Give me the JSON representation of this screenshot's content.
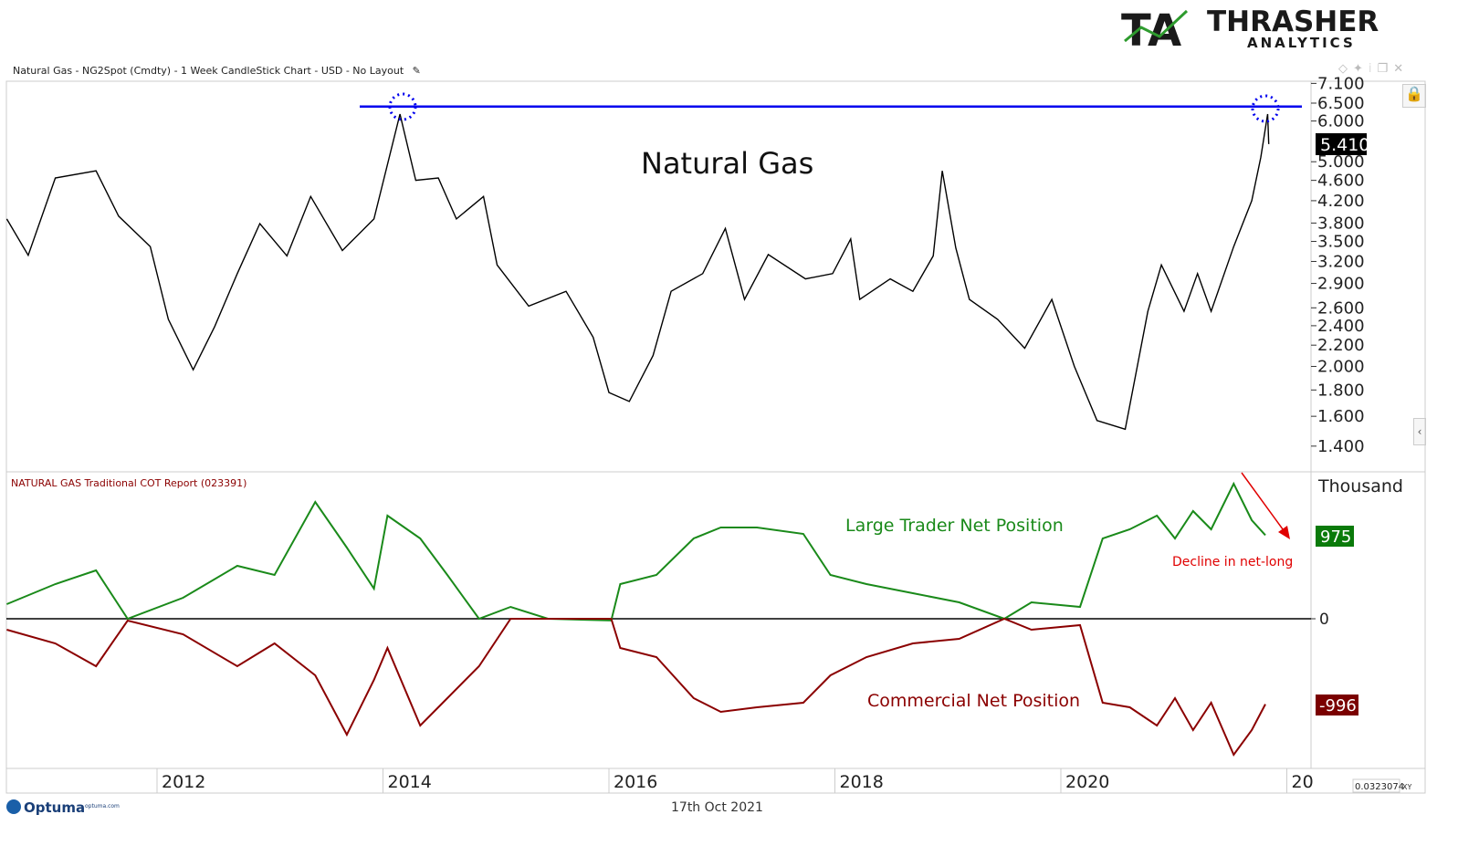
{
  "header": {
    "title": "Natural Gas - NG2Spot (Cmdty) - 1 Week CandleStick Chart - USD - No Layout",
    "edit_icon": "pencil-icon"
  },
  "logo": {
    "brand": "THRASHER",
    "sub": "ANALYTICS",
    "mark": "TA"
  },
  "toolbar_icons": [
    "diamond-icon",
    "pin-icon",
    "info-icon",
    "restore-window-icon",
    "close-icon"
  ],
  "colors": {
    "price": "#000000",
    "resistance": "#0000ee",
    "large_trader": "#1a8a1a",
    "commercial": "#8b0000",
    "annotation": "#e00000"
  },
  "footer": {
    "brand": "Optuma",
    "site": "optuma.com",
    "date": "17th Oct 2021",
    "coord_readout": "0.0323074",
    "xy_label": "XY"
  },
  "chart_data": [
    {
      "type": "candlestick",
      "title": "Natural Gas",
      "yscale": "log",
      "ylim": [
        1.35,
        7.1
      ],
      "yticks": [
        "7.100",
        "6.500",
        "6.000",
        "5.000",
        "4.600",
        "4.200",
        "3.800",
        "3.500",
        "3.200",
        "2.900",
        "2.600",
        "2.400",
        "2.200",
        "2.000",
        "1.800",
        "1.600",
        "1.400"
      ],
      "last_value": "5.410",
      "resistance_level": 6.4,
      "annotations": [
        "circle at 2014 high",
        "circle at 2021 high"
      ],
      "x": [
        2010.67,
        2010.86,
        2011.1,
        2011.46,
        2011.66,
        2011.94,
        2012.1,
        2012.32,
        2012.51,
        2012.71,
        2012.91,
        2013.15,
        2013.36,
        2013.64,
        2013.92,
        2014.15,
        2014.29,
        2014.49,
        2014.65,
        2014.89,
        2015.01,
        2015.29,
        2015.62,
        2015.86,
        2016.0,
        2016.18,
        2016.39,
        2016.55,
        2016.83,
        2017.03,
        2017.2,
        2017.41,
        2017.74,
        2017.98,
        2018.14,
        2018.22,
        2018.49,
        2018.69,
        2018.87,
        2018.95,
        2019.07,
        2019.19,
        2019.44,
        2019.68,
        2019.92,
        2020.12,
        2020.32,
        2020.57,
        2020.77,
        2020.89,
        2021.09,
        2021.21,
        2021.33,
        2021.53,
        2021.69,
        2021.77,
        2021.83,
        2021.84
      ],
      "close": [
        3.87,
        3.29,
        4.65,
        4.8,
        3.92,
        3.42,
        2.47,
        1.97,
        2.39,
        3.03,
        3.79,
        3.28,
        4.28,
        3.36,
        3.87,
        6.19,
        4.6,
        4.65,
        3.87,
        4.28,
        3.15,
        2.62,
        2.8,
        2.28,
        1.78,
        1.71,
        2.1,
        2.8,
        3.03,
        3.71,
        2.7,
        3.3,
        2.96,
        3.03,
        3.54,
        2.7,
        2.96,
        2.8,
        3.28,
        4.8,
        3.4,
        2.7,
        2.47,
        2.17,
        2.7,
        2.0,
        1.57,
        1.51,
        2.56,
        3.15,
        2.56,
        3.03,
        2.56,
        3.42,
        4.2,
        5.1,
        6.19,
        5.41
      ]
    },
    {
      "type": "line",
      "title": "NATURAL GAS Traditional COT Report (023391)",
      "ylabel": "Thousand",
      "zero_label": "0",
      "x": [
        2010.67,
        2011.1,
        2011.46,
        2011.74,
        2012.23,
        2012.71,
        2013.04,
        2013.4,
        2013.68,
        2013.92,
        2014.04,
        2014.33,
        2014.57,
        2014.85,
        2015.13,
        2015.46,
        2016.02,
        2016.1,
        2016.42,
        2016.75,
        2016.99,
        2017.31,
        2017.72,
        2017.96,
        2018.28,
        2018.69,
        2019.1,
        2019.5,
        2019.74,
        2020.17,
        2020.37,
        2020.61,
        2020.85,
        2021.01,
        2021.17,
        2021.33,
        2021.53,
        2021.69,
        2021.81
      ],
      "series": [
        {
          "name": "Large Trader Net Position",
          "last_label": "975",
          "values": [
            170,
            404,
            564,
            0,
            245,
            617,
            511,
            1362,
            830,
            351,
            1202,
            936,
            511,
            0,
            138,
            0,
            -20,
            404,
            511,
            936,
            1064,
            1064,
            989,
            511,
            404,
            298,
            191,
            0,
            191,
            138,
            936,
            1043,
            1202,
            936,
            1255,
            1043,
            1574,
            1149,
            975
          ]
        },
        {
          "name": "Commercial Net Position",
          "last_label": "-996",
          "values": [
            -128,
            -287,
            -553,
            -21,
            -181,
            -553,
            -287,
            -660,
            -1351,
            -713,
            -340,
            -1245,
            -926,
            -553,
            0,
            0,
            0,
            -340,
            -447,
            -926,
            -1085,
            -1032,
            -979,
            -660,
            -447,
            -287,
            -234,
            0,
            -128,
            -74,
            -979,
            -1032,
            -1245,
            -926,
            -1298,
            -979,
            -1585,
            -1298,
            -996
          ]
        }
      ],
      "annotation": "Decline in net-long"
    }
  ],
  "xaxis": {
    "ticks": [
      "2012",
      "2014",
      "2016",
      "2018",
      "2020",
      "20"
    ]
  }
}
